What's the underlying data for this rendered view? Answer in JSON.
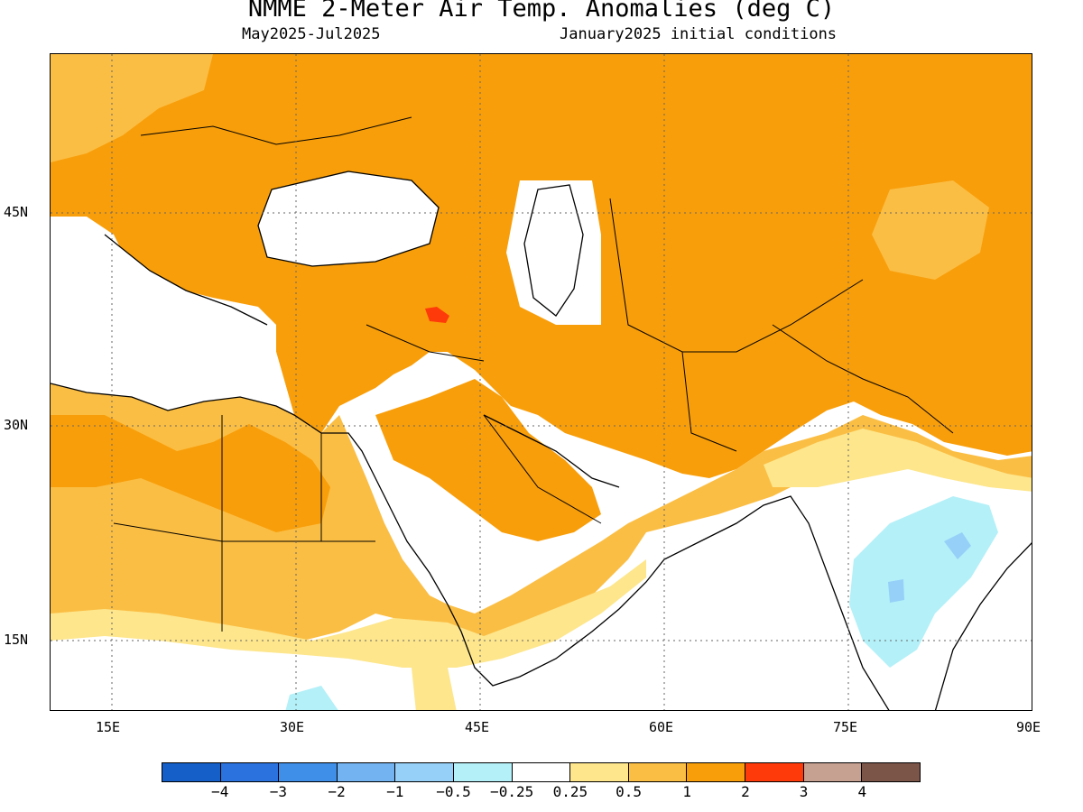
{
  "title": "NMME 2-Meter Air Temp. Anomalies (deg C)",
  "subtitle_left": "May2025-Jul2025",
  "subtitle_right": "January2025 initial conditions",
  "map": {
    "region": "Middle East / South-Central Asia",
    "lon_range": [
      10,
      90
    ],
    "lat_range": [
      10,
      60
    ],
    "x_ticks": [
      "15E",
      "30E",
      "45E",
      "60E",
      "75E",
      "90E"
    ],
    "y_ticks": [
      "45N",
      "30N",
      "15N"
    ],
    "anomaly_regions": [
      {
        "area": "Europe / Balkans / Central Asia / Iran / Afghanistan",
        "anomaly": "1 to 2"
      },
      {
        "area": "Arabian Peninsula / Sahara",
        "anomaly": "0.5 to 1 and 1 to 2"
      },
      {
        "area": "Eastern Turkey",
        "anomaly": "2 to 3"
      },
      {
        "area": "Central India",
        "anomaly": "-0.5 to -0.25"
      },
      {
        "area": "Eastern Mediterranean / Black Sea / Caspian / Arabian Sea",
        "anomaly": "-0.25 to 0.25"
      }
    ]
  },
  "colorbar": {
    "colors": [
      "#1560c8",
      "#2b72de",
      "#3f8ee8",
      "#74b3f2",
      "#96d0f8",
      "#b4f0f8",
      "#ffffff",
      "#fde68c",
      "#fbbe44",
      "#f89e0a",
      "#ff3a0a",
      "#c6a091",
      "#7b5548"
    ],
    "labels": [
      "-4",
      "-3",
      "-2",
      "-1",
      "-0.5",
      "-0.25",
      "0.25",
      "0.5",
      "1",
      "2",
      "3",
      "4"
    ]
  }
}
